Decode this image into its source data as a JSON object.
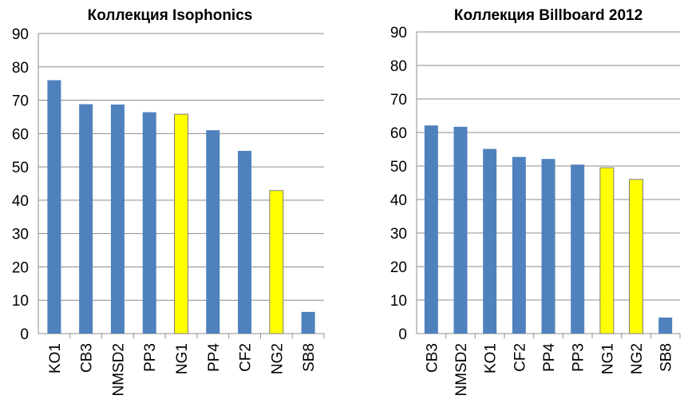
{
  "colors": {
    "bar_default": "#4f81bd",
    "bar_highlight": "#ffff00",
    "bar_highlight_border": "#7f7f7f",
    "gridline": "#8c8c8c"
  },
  "chart_data": [
    {
      "type": "bar",
      "title": "Коллекция Isophonics",
      "xlabel": "",
      "ylabel": "",
      "ylim": [
        0,
        90
      ],
      "yticks": [
        0,
        10,
        20,
        30,
        40,
        50,
        60,
        70,
        80,
        90
      ],
      "grid": true,
      "legend": "none",
      "categories": [
        "KO1",
        "CB3",
        "NMSD2",
        "PP3",
        "NG1",
        "PP4",
        "CF2",
        "NG2",
        "SB8"
      ],
      "values": [
        76,
        68.8,
        68.7,
        66.4,
        65.8,
        61,
        54.8,
        42.9,
        6.5
      ],
      "highlighted": [
        "NG1",
        "NG2"
      ]
    },
    {
      "type": "bar",
      "title": "Коллекция Billboard 2012",
      "xlabel": "",
      "ylabel": "",
      "ylim": [
        0,
        90
      ],
      "yticks": [
        0,
        10,
        20,
        30,
        40,
        50,
        60,
        70,
        80,
        90
      ],
      "grid": true,
      "legend": "none",
      "categories": [
        "CB3",
        "NMSD2",
        "KO1",
        "CF2",
        "PP4",
        "PP3",
        "NG1",
        "NG2",
        "SB8"
      ],
      "values": [
        62.1,
        61.7,
        55.1,
        52.7,
        52.1,
        50.4,
        49.5,
        46,
        4.8
      ],
      "highlighted": [
        "NG1",
        "NG2"
      ]
    }
  ]
}
